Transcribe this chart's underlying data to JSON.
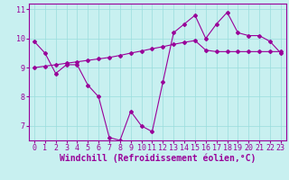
{
  "title": "",
  "xlabel": "Windchill (Refroidissement éolien,°C)",
  "ylabel": "",
  "bg_color": "#c8f0f0",
  "line_color": "#990099",
  "xlim": [
    -0.5,
    23.5
  ],
  "ylim": [
    6.5,
    11.2
  ],
  "yticks": [
    7,
    8,
    9,
    10,
    11
  ],
  "xticks": [
    0,
    1,
    2,
    3,
    4,
    5,
    6,
    7,
    8,
    9,
    10,
    11,
    12,
    13,
    14,
    15,
    16,
    17,
    18,
    19,
    20,
    21,
    22,
    23
  ],
  "observed": [
    9.9,
    9.5,
    8.8,
    9.1,
    9.1,
    8.4,
    8.0,
    6.6,
    6.5,
    7.5,
    7.0,
    6.8,
    8.5,
    10.2,
    10.5,
    10.8,
    10.0,
    10.5,
    10.9,
    10.2,
    10.1,
    10.1,
    9.9,
    9.5
  ],
  "trend": [
    9.0,
    9.05,
    9.1,
    9.15,
    9.2,
    9.25,
    9.3,
    9.35,
    9.42,
    9.5,
    9.57,
    9.65,
    9.72,
    9.8,
    9.87,
    9.93,
    9.6,
    9.55,
    9.55,
    9.55,
    9.55,
    9.55,
    9.55,
    9.55
  ],
  "grid_color": "#99dddd",
  "tick_fontsize": 6,
  "xlabel_fontsize": 7,
  "marker": "D",
  "marker_size": 2.0,
  "linewidth": 0.8
}
